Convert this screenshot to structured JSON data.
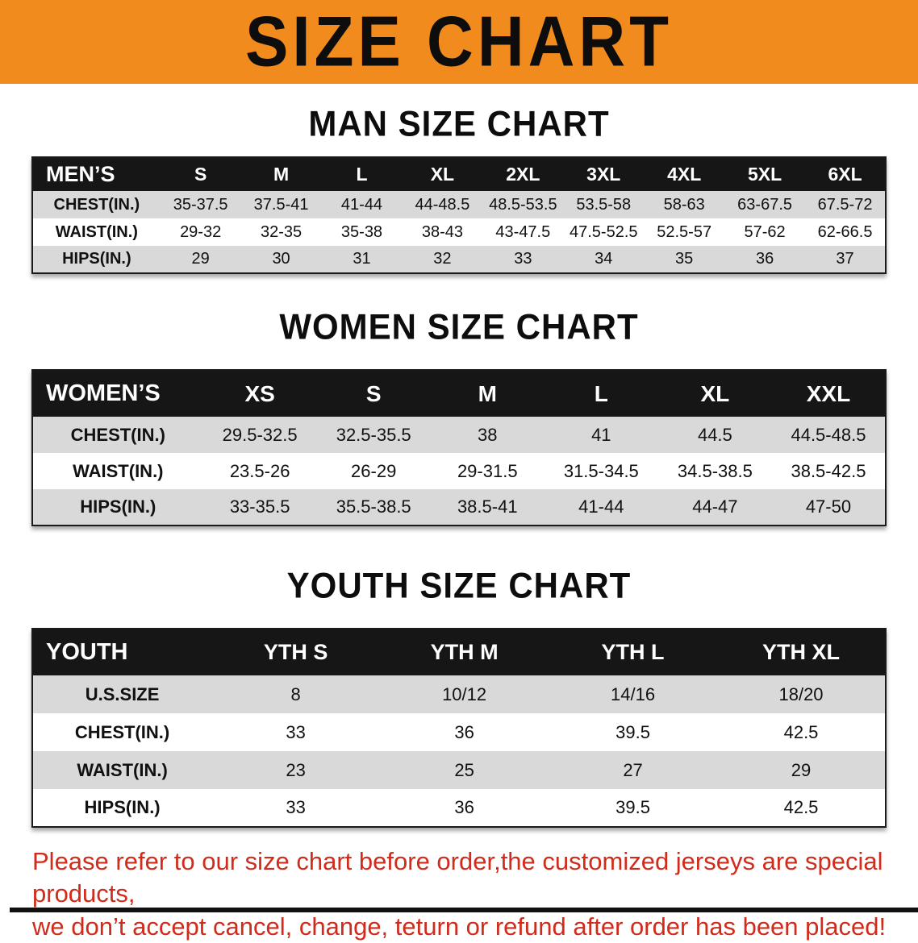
{
  "banner": {
    "title": "SIZE CHART"
  },
  "sections": [
    {
      "heading": "MAN SIZE CHART",
      "table": {
        "header": [
          "MEN’S",
          "S",
          "M",
          "L",
          "XL",
          "2XL",
          "3XL",
          "4XL",
          "5XL",
          "6XL"
        ],
        "rows": [
          [
            "CHEST(IN.)",
            "35-37.5",
            "37.5-41",
            "41-44",
            "44-48.5",
            "48.5-53.5",
            "53.5-58",
            "58-63",
            "63-67.5",
            "67.5-72"
          ],
          [
            "WAIST(IN.)",
            "29-32",
            "32-35",
            "35-38",
            "38-43",
            "43-47.5",
            "47.5-52.5",
            "52.5-57",
            "57-62",
            "62-66.5"
          ],
          [
            "HIPS(IN.)",
            "29",
            "30",
            "31",
            "32",
            "33",
            "34",
            "35",
            "36",
            "37"
          ]
        ]
      }
    },
    {
      "heading": "WOMEN SIZE CHART",
      "table": {
        "header": [
          "WOMEN’S",
          "XS",
          "S",
          "M",
          "L",
          "XL",
          "XXL"
        ],
        "rows": [
          [
            "CHEST(IN.)",
            "29.5-32.5",
            "32.5-35.5",
            "38",
            "41",
            "44.5",
            "44.5-48.5"
          ],
          [
            "WAIST(IN.)",
            "23.5-26",
            "26-29",
            "29-31.5",
            "31.5-34.5",
            "34.5-38.5",
            "38.5-42.5"
          ],
          [
            "HIPS(IN.)",
            "33-35.5",
            "35.5-38.5",
            "38.5-41",
            "41-44",
            "44-47",
            "47-50"
          ]
        ]
      }
    },
    {
      "heading": "YOUTH SIZE CHART",
      "table": {
        "header": [
          "YOUTH",
          "YTH S",
          "YTH M",
          "YTH L",
          "YTH XL"
        ],
        "rows": [
          [
            "U.S.SIZE",
            "8",
            "10/12",
            "14/16",
            "18/20"
          ],
          [
            "CHEST(IN.)",
            "33",
            "36",
            "39.5",
            "42.5"
          ],
          [
            "WAIST(IN.)",
            "23",
            "25",
            "27",
            "29"
          ],
          [
            "HIPS(IN.)",
            "33",
            "36",
            "39.5",
            "42.5"
          ]
        ]
      }
    }
  ],
  "footer": {
    "line1": "Please refer to our size chart before order,the customized jerseys are special products,",
    "line2": "we don’t accept cancel, change, teturn or refund after order has been placed!"
  },
  "colors": {
    "banner_orange": "#F28B1D",
    "header_black": "#161616",
    "row_gray": "#D9D9D9",
    "footer_red": "#D02B1B"
  }
}
